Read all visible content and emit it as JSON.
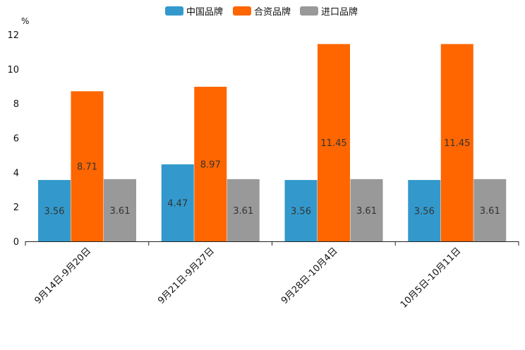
{
  "chart_data": {
    "type": "bar",
    "title": "",
    "xlabel": "",
    "ylabel": "%",
    "ylim": [
      0,
      12
    ],
    "yticks": [
      0,
      2,
      4,
      6,
      8,
      10,
      12
    ],
    "grid": false,
    "legend_position": "top-center",
    "categories": [
      "9月14日-9月20日",
      "9月21日-9月27日",
      "9月28日-10月4日",
      "10月5日-10月11日"
    ],
    "series": [
      {
        "name": "中国品牌",
        "color": "#3399CC",
        "values": [
          3.56,
          4.47,
          3.56,
          3.56
        ]
      },
      {
        "name": "合资品牌",
        "color": "#FF6600",
        "values": [
          8.71,
          8.97,
          11.45,
          11.45
        ]
      },
      {
        "name": "进口品牌",
        "color": "#999999",
        "values": [
          3.61,
          3.61,
          3.61,
          3.61
        ]
      }
    ]
  }
}
